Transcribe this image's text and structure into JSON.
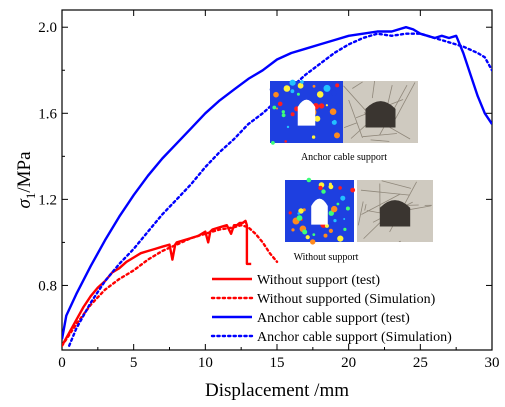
{
  "chart_data": {
    "type": "line",
    "xlabel": "Displacement /mm",
    "ylabel_main": "σ",
    "ylabel_sub": "1",
    "ylabel_unit": "/MPa",
    "xlim": [
      0,
      30
    ],
    "ylim": [
      0.5,
      2.08
    ],
    "x_ticks": [
      0,
      5,
      10,
      15,
      20,
      25,
      30
    ],
    "y_ticks": [
      0.8,
      1.2,
      1.6,
      2.0
    ],
    "x_tick_labels": [
      "0",
      "5",
      "10",
      "15",
      "20",
      "25",
      "30"
    ],
    "y_tick_labels": [
      "0.8",
      "1.2",
      "1.6",
      "2.0"
    ],
    "grid": false,
    "legend_position": "bottom-right",
    "series": [
      {
        "name": "Without support (test)",
        "color": "#ff0000",
        "style": "solid",
        "x": [
          0,
          0.5,
          1,
          1.5,
          2,
          2.5,
          3,
          3.5,
          4,
          4.5,
          5,
          5.5,
          6,
          6.5,
          7,
          7.5,
          7.7,
          7.9,
          8,
          8.5,
          9,
          9.5,
          10,
          10.2,
          10.35,
          10.5,
          11,
          11.5,
          11.8,
          12,
          12.2,
          12.4,
          12.6,
          12.8,
          12.9,
          12.9,
          13.0,
          13.2
        ],
        "y": [
          0.52,
          0.58,
          0.64,
          0.7,
          0.75,
          0.79,
          0.82,
          0.86,
          0.88,
          0.91,
          0.93,
          0.95,
          0.96,
          0.97,
          0.98,
          0.99,
          0.92,
          0.99,
          1.0,
          1.01,
          1.02,
          1.03,
          1.05,
          1.0,
          1.05,
          1.06,
          1.07,
          1.08,
          1.04,
          1.08,
          1.08,
          1.09,
          1.09,
          1.1,
          1.08,
          0.9,
          0.9,
          0.9
        ]
      },
      {
        "name": "Without supported (Simulation)",
        "color": "#ff0000",
        "style": "dotted",
        "x": [
          0,
          0.5,
          1,
          2,
          3,
          4,
          5,
          6,
          7,
          8,
          9,
          10,
          11,
          12,
          12.5,
          13,
          13.5,
          14,
          14.5,
          15
        ],
        "y": [
          0.52,
          0.57,
          0.62,
          0.71,
          0.78,
          0.83,
          0.87,
          0.92,
          0.96,
          0.99,
          1.02,
          1.04,
          1.06,
          1.07,
          1.08,
          1.07,
          1.04,
          1.0,
          0.95,
          0.91
        ]
      },
      {
        "name": "Anchor cable support (test)",
        "color": "#0000ff",
        "style": "solid",
        "x": [
          0,
          0.3,
          1,
          2,
          3,
          4,
          5,
          6,
          7,
          8,
          9,
          10,
          11,
          12,
          13,
          14,
          15,
          16,
          17,
          18,
          19,
          20,
          21,
          22,
          23,
          24,
          24.5,
          25,
          25.5,
          26,
          26.5,
          27,
          27.5,
          28,
          28.5,
          29,
          29.5,
          30
        ],
        "y": [
          0.55,
          0.66,
          0.76,
          0.89,
          1.01,
          1.12,
          1.22,
          1.31,
          1.39,
          1.46,
          1.53,
          1.6,
          1.66,
          1.71,
          1.76,
          1.8,
          1.85,
          1.88,
          1.9,
          1.92,
          1.94,
          1.96,
          1.97,
          1.98,
          1.98,
          2.0,
          1.99,
          1.97,
          1.96,
          1.95,
          1.96,
          1.95,
          1.96,
          1.88,
          1.78,
          1.68,
          1.6,
          1.55
        ]
      },
      {
        "name": "Anchor cable support (Simulation)",
        "color": "#0000ff",
        "style": "dotted",
        "x": [
          0.5,
          1,
          2,
          3,
          4,
          5,
          6,
          7,
          8,
          9,
          10,
          11,
          12,
          13,
          14,
          15,
          16,
          17,
          18,
          19,
          20,
          21,
          22,
          23,
          24,
          25,
          26,
          27,
          28,
          29,
          29.5,
          30
        ],
        "y": [
          0.52,
          0.6,
          0.72,
          0.82,
          0.9,
          0.97,
          1.05,
          1.13,
          1.2,
          1.27,
          1.35,
          1.42,
          1.48,
          1.55,
          1.6,
          1.66,
          1.72,
          1.78,
          1.83,
          1.88,
          1.92,
          1.95,
          1.97,
          1.96,
          1.97,
          1.97,
          1.95,
          1.93,
          1.91,
          1.88,
          1.86,
          1.8
        ]
      }
    ],
    "annotations": {
      "inset_1_caption": "Anchor cable support",
      "inset_2_caption": "Without support"
    }
  },
  "insets": {
    "sim_colors": [
      "#1e3fe0",
      "#22c1ff",
      "#3cff7a",
      "#fff23a",
      "#ff8a1e",
      "#ff1e1e"
    ],
    "photo_colors": [
      "#d6d2c8",
      "#8f877a",
      "#3a3530",
      "#b9b2a5"
    ]
  }
}
